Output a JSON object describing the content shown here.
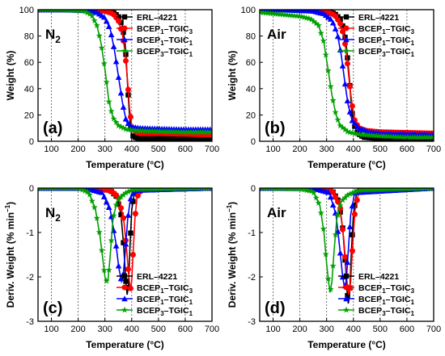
{
  "colors": {
    "ERL-4221": "#000000",
    "BCEP1-TGIC3": "#ff0000",
    "BCEP1-TGIC1": "#0000ff",
    "BCEP3-TGIC1": "#00a000"
  },
  "chart_data": [
    {
      "type": "line",
      "panel_label": "(a)",
      "atmosphere": "N",
      "atmosphere_sub": "2",
      "xlabel": "Temperature (°C)",
      "ylabel": "Weight (%)",
      "xlim": [
        50,
        700
      ],
      "ylim": [
        0,
        100
      ],
      "xticks": [
        100,
        200,
        300,
        400,
        500,
        600,
        700
      ],
      "yticks": [
        0,
        20,
        40,
        60,
        80,
        100
      ],
      "vertical_grid": [
        100,
        200,
        300,
        400,
        500,
        600
      ],
      "legend_position": "top-right",
      "series": [
        {
          "name": "ERL-4221",
          "marker": "square",
          "x": [
            50,
            150,
            250,
            300,
            330,
            350,
            365,
            375,
            380,
            385,
            390,
            395,
            400,
            410,
            430,
            500,
            600,
            700
          ],
          "y": [
            100,
            100,
            100,
            99.5,
            98,
            95,
            88,
            75,
            60,
            42,
            25,
            12,
            5,
            3,
            2,
            2,
            2,
            2
          ]
        },
        {
          "name": "BCEP1-TGIC3",
          "marker": "circle",
          "x": [
            50,
            150,
            250,
            300,
            330,
            350,
            365,
            375,
            385,
            392,
            400,
            410,
            430,
            500,
            600,
            700
          ],
          "y": [
            100,
            100,
            99.8,
            99,
            97,
            92,
            82,
            68,
            45,
            25,
            12,
            8,
            6,
            6,
            5.5,
            5
          ]
        },
        {
          "name": "BCEP1-TGIC1",
          "marker": "triangle",
          "x": [
            50,
            150,
            230,
            270,
            300,
            320,
            335,
            350,
            365,
            380,
            400,
            430,
            500,
            600,
            700
          ],
          "y": [
            100,
            100,
            99.5,
            98,
            94,
            85,
            70,
            50,
            30,
            15,
            11,
            10,
            9.5,
            9,
            9
          ]
        },
        {
          "name": "BCEP3-TGIC1",
          "marker": "star",
          "x": [
            50,
            150,
            220,
            250,
            270,
            285,
            300,
            315,
            330,
            350,
            380,
            430,
            500,
            600,
            700
          ],
          "y": [
            100,
            99.8,
            99,
            96,
            88,
            75,
            55,
            30,
            18,
            12,
            9,
            8,
            7.5,
            7,
            7
          ]
        }
      ]
    },
    {
      "type": "line",
      "panel_label": "(b)",
      "atmosphere": "Air",
      "atmosphere_sub": "",
      "xlabel": "Temperature (°C)",
      "ylabel": "Weight (%)",
      "xlim": [
        50,
        700
      ],
      "ylim": [
        0,
        100
      ],
      "xticks": [
        100,
        200,
        300,
        400,
        500,
        600,
        700
      ],
      "yticks": [
        0,
        20,
        40,
        60,
        80,
        100
      ],
      "vertical_grid": [
        100,
        200,
        300,
        400,
        500,
        600
      ],
      "legend_position": "top-right",
      "series": [
        {
          "name": "ERL-4221",
          "marker": "square",
          "x": [
            50,
            150,
            250,
            300,
            330,
            350,
            365,
            375,
            385,
            392,
            400,
            415,
            440,
            500,
            600,
            700
          ],
          "y": [
            100,
            100,
            99.8,
            99,
            97,
            93,
            85,
            70,
            48,
            28,
            14,
            6,
            3,
            2,
            1.5,
            1
          ]
        },
        {
          "name": "BCEP1-TGIC3",
          "marker": "circle",
          "x": [
            50,
            150,
            250,
            300,
            330,
            350,
            365,
            375,
            385,
            395,
            405,
            420,
            450,
            500,
            600,
            700
          ],
          "y": [
            100,
            100,
            99.5,
            98.5,
            96,
            90,
            80,
            65,
            45,
            28,
            16,
            10,
            8,
            7,
            6.5,
            6
          ]
        },
        {
          "name": "BCEP1-TGIC1",
          "marker": "triangle",
          "x": [
            50,
            150,
            250,
            290,
            320,
            340,
            355,
            368,
            380,
            395,
            420,
            460,
            500,
            600,
            700
          ],
          "y": [
            100,
            99.8,
            99,
            97,
            92,
            82,
            65,
            45,
            28,
            16,
            10,
            7,
            6,
            5.5,
            5
          ]
        },
        {
          "name": "BCEP3-TGIC1",
          "marker": "star",
          "x": [
            50,
            100,
            150,
            200,
            240,
            270,
            290,
            305,
            320,
            335,
            350,
            380,
            430,
            500,
            600,
            700
          ],
          "y": [
            98,
            97,
            96,
            95,
            93,
            88,
            75,
            55,
            35,
            20,
            12,
            7,
            5,
            4,
            3,
            3
          ]
        }
      ]
    },
    {
      "type": "line",
      "panel_label": "(c)",
      "atmosphere": "N",
      "atmosphere_sub": "2",
      "xlabel": "Temperature (°C)",
      "ylabel": "Deriv. Weight (% min",
      "ylabel_sup": "−1",
      "xlim": [
        50,
        700
      ],
      "ylim": [
        -3,
        0
      ],
      "xticks": [
        100,
        200,
        300,
        400,
        500,
        600,
        700
      ],
      "yticks": [
        0,
        -1,
        -2,
        -3
      ],
      "vertical_grid": [
        100,
        200,
        300,
        400,
        500,
        600
      ],
      "legend_position": "bottom-right",
      "series": [
        {
          "name": "ERL-4221",
          "marker": "square",
          "x": [
            50,
            250,
            320,
            345,
            360,
            370,
            378,
            383,
            388,
            393,
            400,
            410,
            430,
            700
          ],
          "y": [
            0,
            0,
            -0.05,
            -0.2,
            -0.6,
            -1.3,
            -2.1,
            -2.4,
            -2.2,
            -1.4,
            -0.5,
            -0.1,
            0,
            0
          ]
        },
        {
          "name": "BCEP1-TGIC3",
          "marker": "circle",
          "x": [
            50,
            250,
            320,
            350,
            370,
            380,
            388,
            395,
            400,
            405,
            412,
            420,
            440,
            700
          ],
          "y": [
            0,
            0,
            -0.05,
            -0.2,
            -0.7,
            -1.3,
            -1.9,
            -2.3,
            -2.1,
            -1.5,
            -0.7,
            -0.2,
            0,
            0
          ]
        },
        {
          "name": "BCEP1-TGIC1",
          "marker": "triangle",
          "x": [
            50,
            230,
            290,
            320,
            340,
            352,
            362,
            368,
            375,
            385,
            395,
            410,
            700
          ],
          "y": [
            0,
            0,
            -0.1,
            -0.5,
            -1.2,
            -1.8,
            -2.1,
            -2.0,
            -1.5,
            -0.7,
            -0.25,
            -0.05,
            0
          ]
        },
        {
          "name": "BCEP3-TGIC1",
          "marker": "star",
          "x": [
            50,
            200,
            240,
            265,
            282,
            292,
            300,
            305,
            312,
            320,
            330,
            345,
            360,
            380,
            410,
            700
          ],
          "y": [
            0,
            0,
            -0.1,
            -0.5,
            -1.1,
            -1.6,
            -2.0,
            -2.1,
            -2.05,
            -1.5,
            -0.7,
            -0.3,
            -0.2,
            -0.1,
            -0.03,
            0
          ]
        }
      ]
    },
    {
      "type": "line",
      "panel_label": "(d)",
      "atmosphere": "Air",
      "atmosphere_sub": "",
      "xlabel": "Temperature (°C)",
      "ylabel": "Deriv. Weight (% min",
      "ylabel_sup": "−1",
      "xlim": [
        50,
        700
      ],
      "ylim": [
        -3,
        0
      ],
      "xticks": [
        100,
        200,
        300,
        400,
        500,
        600,
        700
      ],
      "yticks": [
        0,
        -1,
        -2,
        -3
      ],
      "vertical_grid": [
        100,
        200,
        300,
        400,
        500,
        600
      ],
      "legend_position": "bottom-right",
      "series": [
        {
          "name": "ERL-4221",
          "marker": "square",
          "x": [
            50,
            250,
            320,
            345,
            360,
            370,
            376,
            381,
            386,
            392,
            400,
            412,
            430,
            700
          ],
          "y": [
            0,
            0,
            -0.05,
            -0.3,
            -0.9,
            -1.7,
            -2.3,
            -2.6,
            -2.4,
            -1.5,
            -0.6,
            -0.1,
            0,
            0
          ]
        },
        {
          "name": "BCEP1-TGIC3",
          "marker": "circle",
          "x": [
            50,
            250,
            320,
            350,
            365,
            373,
            379,
            384,
            390,
            397,
            406,
            420,
            440,
            700
          ],
          "y": [
            0,
            0,
            -0.05,
            -0.4,
            -1.2,
            -1.9,
            -2.3,
            -2.4,
            -2.1,
            -1.3,
            -0.5,
            -0.1,
            0,
            0
          ]
        },
        {
          "name": "BCEP1-TGIC1",
          "marker": "triangle",
          "x": [
            50,
            250,
            310,
            335,
            350,
            360,
            367,
            373,
            380,
            390,
            405,
            700
          ],
          "y": [
            0,
            0,
            -0.1,
            -0.6,
            -1.4,
            -2.0,
            -2.25,
            -2.1,
            -1.5,
            -0.6,
            -0.1,
            0
          ]
        },
        {
          "name": "BCEP3-TGIC1",
          "marker": "star",
          "x": [
            50,
            200,
            250,
            275,
            290,
            300,
            307,
            313,
            320,
            328,
            338,
            355,
            380,
            420,
            700
          ],
          "y": [
            0,
            -0.02,
            -0.08,
            -0.4,
            -1.0,
            -1.7,
            -2.1,
            -2.35,
            -2.1,
            -1.4,
            -0.7,
            -0.3,
            -0.15,
            -0.05,
            0
          ]
        }
      ]
    }
  ],
  "legend_entries": [
    {
      "base": "ERL",
      "sep": "–",
      "tail": "4221",
      "sub1": "",
      "mid": "",
      "sub2": ""
    },
    {
      "base": "BCEP",
      "sub1": "1",
      "mid": "–TGIC",
      "sub2": "3",
      "sep": "",
      "tail": ""
    },
    {
      "base": "BCEP",
      "sub1": "1",
      "mid": "–TGIC",
      "sub2": "1",
      "sep": "",
      "tail": ""
    },
    {
      "base": "BCEP",
      "sub1": "3",
      "mid": "–TGIC",
      "sub2": "1",
      "sep": "",
      "tail": ""
    }
  ]
}
